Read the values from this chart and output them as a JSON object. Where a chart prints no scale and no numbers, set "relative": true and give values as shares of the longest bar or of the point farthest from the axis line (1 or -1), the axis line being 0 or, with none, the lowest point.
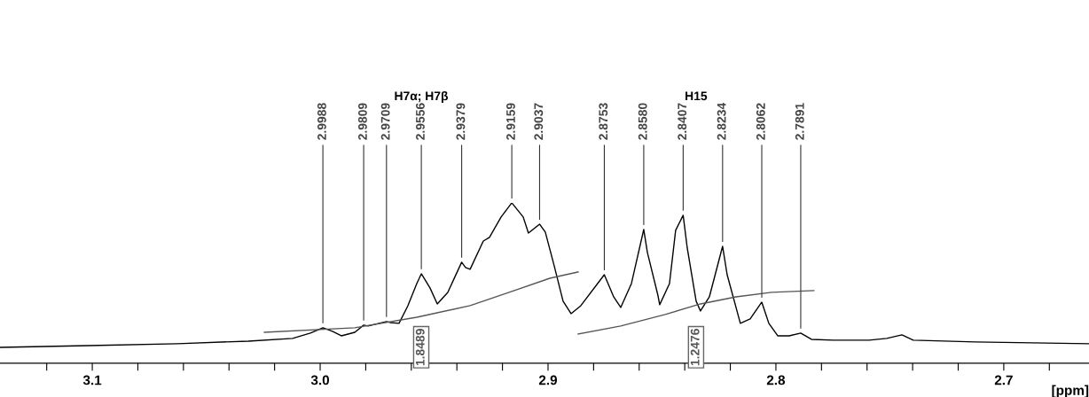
{
  "chart_data": {
    "type": "line",
    "relative": true,
    "xlabel": "[ppm]",
    "xlim": [
      3.1405,
      2.6626
    ],
    "xticks": [
      {
        "value": 3.12,
        "label": null
      },
      3.1,
      {
        "value": 3.08,
        "label": null
      },
      {
        "value": 3.06,
        "label": null
      },
      {
        "value": 3.04,
        "label": null
      },
      {
        "value": 3.02,
        "label": null
      },
      {
        "value": 3.0,
        "label": "3.0"
      },
      {
        "value": 2.98,
        "label": null
      },
      {
        "value": 2.96,
        "label": null
      },
      {
        "value": 2.94,
        "label": null
      },
      {
        "value": 2.92,
        "label": null
      },
      2.9,
      {
        "value": 2.88,
        "label": null
      },
      {
        "value": 2.86,
        "label": null
      },
      {
        "value": 2.84,
        "label": null
      },
      {
        "value": 2.82,
        "label": null
      },
      2.8,
      {
        "value": 2.78,
        "label": null
      },
      {
        "value": 2.76,
        "label": null
      },
      {
        "value": 2.74,
        "label": null
      },
      {
        "value": 2.72,
        "label": null
      },
      2.7,
      {
        "value": 2.68,
        "label": null
      }
    ],
    "series": [
      {
        "color": "#000000",
        "x": [
          3.1405,
          3.1016,
          3.0626,
          3.0315,
          3.0121,
          3.0043,
          2.9988,
          2.9946,
          2.9907,
          2.9848,
          2.9809,
          2.979,
          2.9709,
          2.9693,
          2.9654,
          2.9615,
          2.9576,
          2.9556,
          2.9518,
          2.9486,
          2.944,
          2.9379,
          2.9362,
          2.9342,
          2.9284,
          2.9257,
          2.9206,
          2.9159,
          2.9109,
          2.9086,
          2.9037,
          2.9012,
          2.8973,
          2.8934,
          2.8899,
          2.8856,
          2.8753,
          2.8712,
          2.8681,
          2.8634,
          2.858,
          2.8564,
          2.8518,
          2.851,
          2.8467,
          2.844,
          2.8407,
          2.8389,
          2.835,
          2.8331,
          2.8292,
          2.8234,
          2.8214,
          2.8156,
          2.8113,
          2.8062,
          2.8031,
          2.7992,
          2.7942,
          2.7891,
          2.7844,
          2.7747,
          2.7591,
          2.7514,
          2.7447,
          2.7397,
          2.7125,
          2.6626
        ],
        "values": [
          0.099,
          0.11,
          0.122,
          0.138,
          0.155,
          0.188,
          0.221,
          0.199,
          0.171,
          0.193,
          0.238,
          0.232,
          0.26,
          0.254,
          0.249,
          0.359,
          0.497,
          0.558,
          0.47,
          0.37,
          0.442,
          0.63,
          0.597,
          0.586,
          0.762,
          0.785,
          0.912,
          1,
          0.912,
          0.812,
          0.867,
          0.818,
          0.608,
          0.387,
          0.309,
          0.359,
          0.552,
          0.414,
          0.348,
          0.497,
          0.834,
          0.691,
          0.425,
          0.365,
          0.497,
          0.829,
          0.923,
          0.718,
          0.387,
          0.326,
          0.414,
          0.729,
          0.552,
          0.249,
          0.276,
          0.381,
          0.249,
          0.171,
          0.171,
          0.188,
          0.149,
          0.144,
          0.144,
          0.155,
          0.177,
          0.144,
          0.133,
          0.122
        ]
      },
      {
        "color": "#555555",
        "x": [
          3.0245,
          2.9848,
          2.9576,
          2.9342,
          2.9148,
          2.8992,
          2.8868
        ],
        "values": [
          0.193,
          0.221,
          0.287,
          0.359,
          0.453,
          0.53,
          0.569
        ]
      },
      {
        "color": "#555555",
        "x": [
          2.8868,
          2.8681,
          2.8486,
          2.8331,
          2.8175,
          2.8019,
          2.7833
        ],
        "values": [
          0.182,
          0.232,
          0.304,
          0.37,
          0.414,
          0.442,
          0.453
        ]
      }
    ],
    "annotations": [
      "H7α; H7β",
      "H15",
      "1.8489",
      "1.2476",
      {
        "text": "2.9988",
        "x": 2.9988,
        "y": 0.221
      },
      {
        "text": "2.9809",
        "x": 2.9809,
        "y": 0.238
      },
      {
        "text": "2.9709",
        "x": 2.9709,
        "y": 0.26
      },
      {
        "text": "2.9556",
        "x": 2.9556,
        "y": 0.558
      },
      {
        "text": "2.9379",
        "x": 2.9379,
        "y": 0.63
      },
      {
        "text": "2.9159",
        "x": 2.9159,
        "y": 1
      },
      {
        "text": "2.9037",
        "x": 2.9037,
        "y": 0.867
      },
      {
        "text": "2.8753",
        "x": 2.8753,
        "y": 0.552
      },
      {
        "text": "2.8580",
        "x": 2.858,
        "y": 0.834
      },
      {
        "text": "2.8407",
        "x": 2.8407,
        "y": 0.923
      },
      {
        "text": "2.8234",
        "x": 2.8234,
        "y": 0.729
      },
      {
        "text": "2.8062",
        "x": 2.8062,
        "y": 0.381
      },
      {
        "text": "2.7891",
        "x": 2.7891,
        "y": 0.188
      }
    ]
  }
}
